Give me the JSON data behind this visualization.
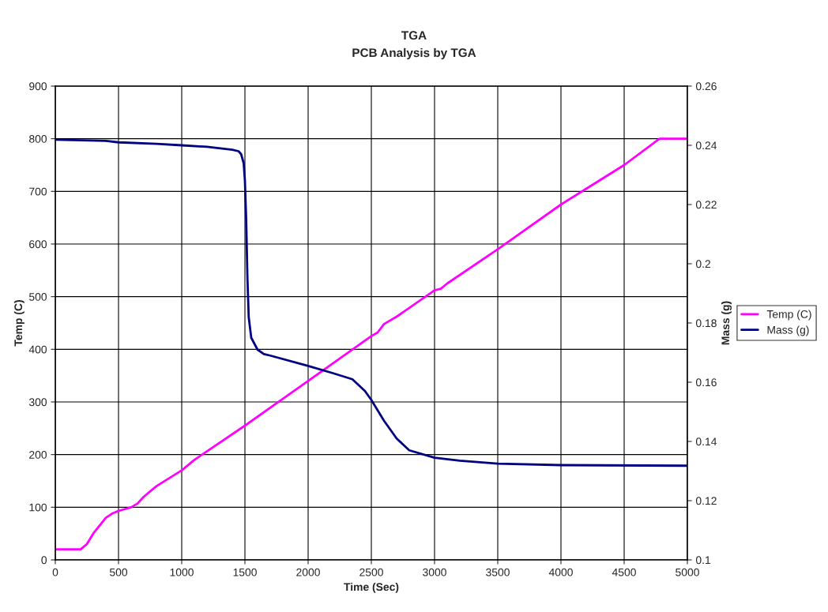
{
  "chart_data": {
    "type": "line",
    "title": "TGA",
    "subtitle": "PCB Analysis by TGA",
    "xlabel": "Time (Sec)",
    "ylabel": "Temp (C)",
    "y2label": "Mass (g)",
    "xlim": [
      0,
      5000
    ],
    "xticks": [
      0,
      500,
      1000,
      1500,
      2000,
      2500,
      3000,
      3500,
      4000,
      4500,
      5000
    ],
    "ylim": [
      0,
      900
    ],
    "yticks": [
      0,
      100,
      200,
      300,
      400,
      500,
      600,
      700,
      800,
      900
    ],
    "y2lim": [
      0.1,
      0.26
    ],
    "y2ticks": [
      0.1,
      0.12,
      0.14,
      0.16,
      0.18,
      0.2,
      0.22,
      0.24,
      0.26
    ],
    "grid": true,
    "legend": "right",
    "marker": "none",
    "line_style": "solid",
    "series": [
      {
        "name": "Temp (C)",
        "color": "#ff00ff",
        "x": [
          0,
          200,
          250,
          300,
          350,
          400,
          450,
          500,
          600,
          650,
          700,
          800,
          900,
          1000,
          1100,
          1500,
          2000,
          2500,
          2550,
          2600,
          2700,
          3000,
          3050,
          3100,
          3500,
          4000,
          4500,
          4780,
          5000
        ],
        "values": [
          20,
          20,
          30,
          50,
          65,
          80,
          88,
          93,
          100,
          107,
          120,
          140,
          155,
          170,
          190,
          255,
          340,
          425,
          432,
          448,
          462,
          512,
          515,
          525,
          590,
          675,
          750,
          800,
          800
        ]
      },
      {
        "name": "Mass (g)",
        "color": "#000080",
        "axis": "y2",
        "x": [
          0,
          400,
          500,
          800,
          1000,
          1200,
          1400,
          1450,
          1470,
          1490,
          1500,
          1510,
          1520,
          1530,
          1550,
          1600,
          1650,
          1700,
          2000,
          2200,
          2350,
          2450,
          2500,
          2600,
          2700,
          2800,
          3000,
          3200,
          3500,
          4000,
          5000
        ],
        "values": [
          0.2419,
          0.2415,
          0.241,
          0.2405,
          0.24,
          0.2395,
          0.2385,
          0.238,
          0.237,
          0.234,
          0.228,
          0.215,
          0.195,
          0.182,
          0.175,
          0.171,
          0.1695,
          0.169,
          0.1655,
          0.163,
          0.161,
          0.157,
          0.154,
          0.147,
          0.141,
          0.137,
          0.1345,
          0.1335,
          0.1325,
          0.132,
          0.1318
        ]
      }
    ]
  }
}
